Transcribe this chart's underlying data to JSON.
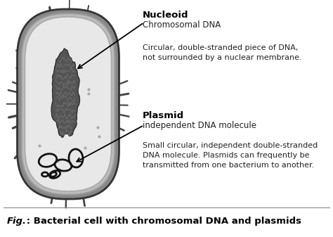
{
  "bg_color": "#ffffff",
  "fig_caption": "Fig.",
  "fig_caption2": "      : Bacterial cell with chromosomal DNA and plasmids",
  "label1_bold": "Nucleoid",
  "label1_sub": "Chromosomal DNA",
  "desc1_line1": "Circular, double-stranded piece of DNA,",
  "desc1_line2": "not surrounded by a nuclear membrane.",
  "label2_bold": "Plasmid",
  "label2_sub": "independent DNA molecule",
  "desc2_line1": "Small circular, independent double-stranded",
  "desc2_line2": "DNA molecule. Plasmids can frequently be",
  "desc2_line3": "transmitted from one bacterium to another.",
  "outer_color": "#888888",
  "outer_edge": "#333333",
  "cell_wall_color": "#aaaaaa",
  "inner_color": "#d4d4d4",
  "inner_edge": "#666666",
  "cytoplasm_color": "#e8e8e8",
  "nucleoid_color": "#444444",
  "spike_color": "#444444",
  "plasmid_color": "#111111",
  "arrow_color": "#000000",
  "text_color": "#000000",
  "desc_color": "#222222"
}
